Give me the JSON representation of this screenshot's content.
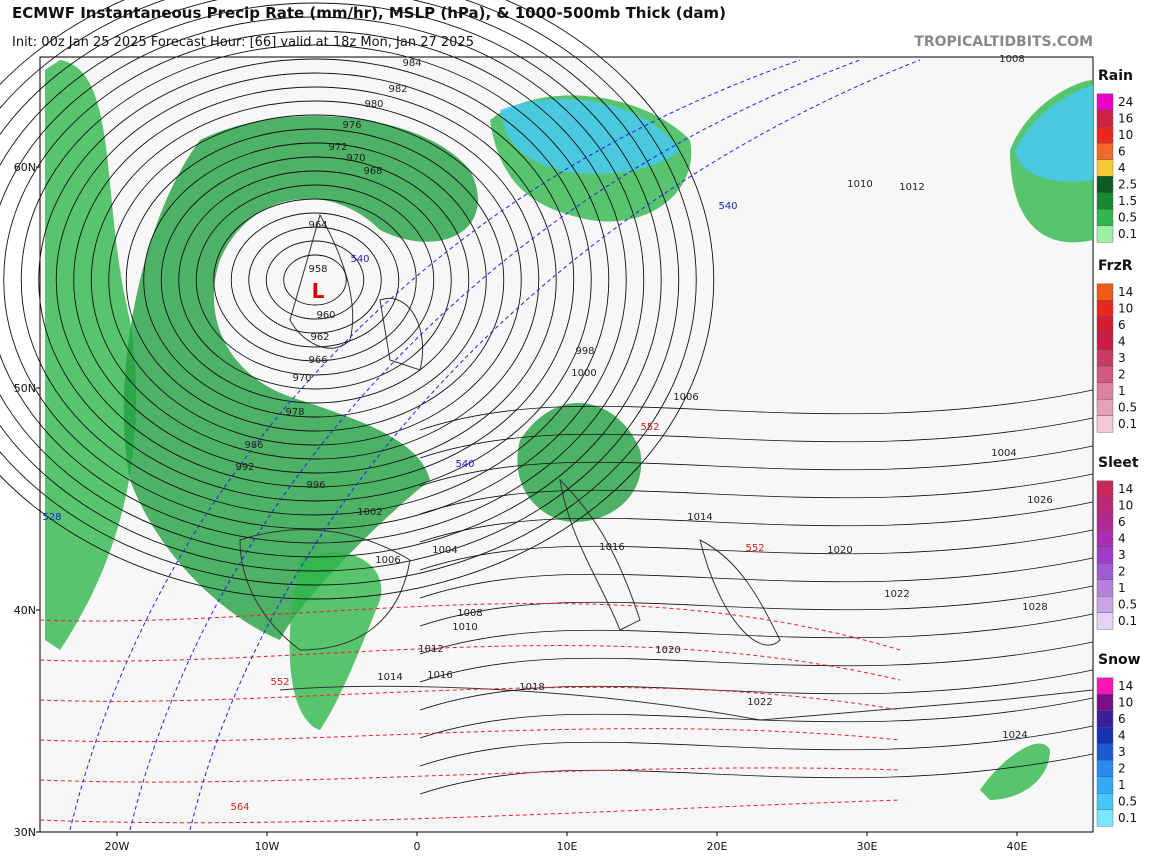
{
  "header": {
    "title": "ECMWF Instantaneous Precip Rate (mm/hr), MSLP (hPa), & 1000-500mb Thick (dam)",
    "subtitle": "Init: 00z Jan 25 2025   Forecast Hour: [66]   valid at 18z Mon, Jan 27 2025",
    "watermark": "TROPICALTIDBITS.COM"
  },
  "map": {
    "lat_labels": [
      "60N",
      "50N",
      "40N",
      "30N"
    ],
    "lon_labels": [
      "20W",
      "10W",
      "0",
      "10E",
      "20E",
      "30E",
      "40E"
    ],
    "low_label": "L",
    "contour_labels": [
      "984",
      "982",
      "980",
      "976",
      "972",
      "970",
      "968",
      "964",
      "958",
      "960",
      "962",
      "966",
      "970",
      "978",
      "986",
      "992",
      "996",
      "998",
      "1000",
      "1002",
      "1004",
      "1006",
      "1008",
      "1010",
      "1012",
      "1014",
      "1016",
      "1018",
      "1020",
      "1022",
      "1024",
      "1026",
      "1008",
      "1010",
      "1012",
      "1014",
      "1016",
      "1020",
      "1022",
      "540",
      "540",
      "540",
      "528",
      "552",
      "552",
      "552",
      "564",
      "1004",
      "1028",
      "1006"
    ]
  },
  "legend": [
    {
      "title": "Rain",
      "ticks": [
        24,
        16,
        10,
        6,
        4,
        2.5,
        1.5,
        0.5,
        0.1
      ],
      "colors": [
        "#e600c8",
        "#cc2244",
        "#e6281e",
        "#f06a2a",
        "#f5c635",
        "#0e5a23",
        "#168a33",
        "#2fb84b",
        "#9ff0a3"
      ]
    },
    {
      "title": "FrzR",
      "ticks": [
        14,
        10,
        6,
        4,
        3,
        2,
        1,
        0.5,
        0.1
      ],
      "colors": [
        "#f05a14",
        "#e6281e",
        "#d21e32",
        "#c81e46",
        "#c83c64",
        "#d25a82",
        "#dc82a0",
        "#e6a0b9",
        "#f5c8d7"
      ]
    },
    {
      "title": "Sleet",
      "ticks": [
        14,
        10,
        6,
        4,
        3,
        2,
        1,
        0.5,
        0.1
      ],
      "colors": [
        "#c8285a",
        "#be2878",
        "#b42896",
        "#aa2db4",
        "#a03cc8",
        "#a05ad2",
        "#b482dc",
        "#c8a5e6",
        "#e6d2f5"
      ]
    },
    {
      "title": "Snow",
      "ticks": [
        14,
        10,
        6,
        4,
        3,
        2,
        1,
        0.5,
        0.1
      ],
      "colors": [
        "#ff14b4",
        "#7a0f8c",
        "#3c1e9b",
        "#1432b4",
        "#1e5ad2",
        "#288cf0",
        "#32aaf5",
        "#46c8fa",
        "#7ae6ff"
      ]
    }
  ]
}
